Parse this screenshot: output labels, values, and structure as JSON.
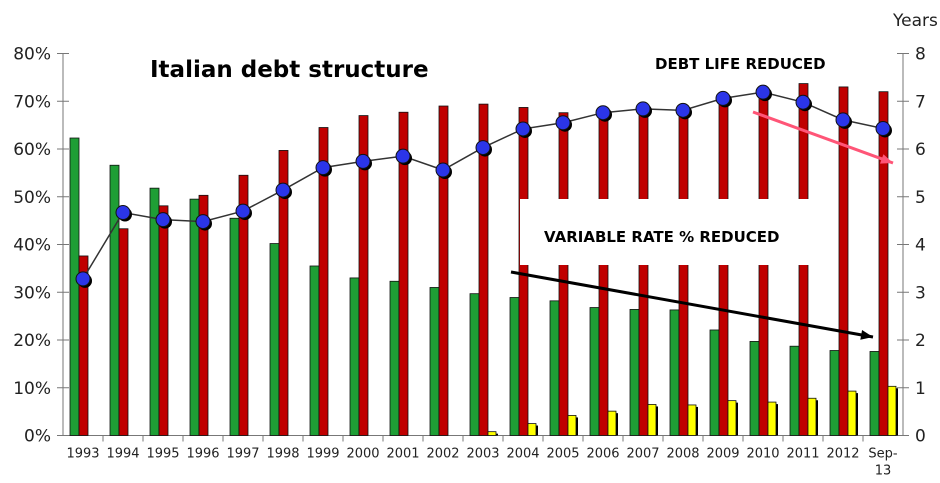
{
  "chart_data": {
    "type": "bar+line",
    "title": "Italian debt structure",
    "categories": [
      "1993",
      "1994",
      "1995",
      "1996",
      "1997",
      "1998",
      "1999",
      "2000",
      "2001",
      "2002",
      "2003",
      "2004",
      "2005",
      "2006",
      "2007",
      "2008",
      "2009",
      "2010",
      "2011",
      "2012",
      "Sep-13"
    ],
    "ylim_left": [
      0,
      80
    ],
    "yticks_left": [
      "0%",
      "10%",
      "20%",
      "30%",
      "40%",
      "50%",
      "60%",
      "70%",
      "80%"
    ],
    "ylim_right": [
      0,
      8
    ],
    "yticks_right": [
      "0",
      "1",
      "2",
      "3",
      "4",
      "5",
      "6",
      "7",
      "8"
    ],
    "ylabel_right": "Years",
    "grid": false,
    "bar_series": [
      {
        "color": "#1f9e35",
        "values": [
          62.3,
          56.6,
          51.8,
          49.5,
          45.5,
          40.2,
          35.5,
          33.0,
          32.3,
          31.0,
          29.7,
          28.9,
          28.2,
          26.8,
          26.4,
          26.3,
          22.1,
          19.7,
          18.7,
          17.8,
          17.6
        ]
      },
      {
        "color": "#c00000",
        "values": [
          37.6,
          43.3,
          48.1,
          50.3,
          54.5,
          59.7,
          64.5,
          67.0,
          67.7,
          69.0,
          69.4,
          68.7,
          67.6,
          68.0,
          68.5,
          68.0,
          71.0,
          72.0,
          73.7,
          73.0,
          72.0
        ]
      },
      {
        "color": "#ffff00",
        "values": [
          0,
          0,
          0,
          0,
          0,
          0,
          0,
          0,
          0,
          0,
          0.8,
          2.5,
          4.2,
          5.1,
          6.5,
          6.4,
          7.3,
          7.0,
          7.8,
          9.3,
          10.3
        ]
      }
    ],
    "line_series": {
      "axis": "right",
      "color": "#2b35e8",
      "values": [
        3.28,
        4.67,
        4.52,
        4.48,
        4.7,
        5.14,
        5.61,
        5.74,
        5.85,
        5.56,
        6.03,
        6.42,
        6.55,
        6.76,
        6.84,
        6.81,
        7.06,
        7.19,
        6.98,
        6.61,
        6.43
      ]
    },
    "annotations": [
      {
        "text": "DEBT LIFE REDUCED",
        "arrow_color": "#ff5577"
      },
      {
        "text": "VARIABLE RATE % REDUCED",
        "arrow_color": "#000000"
      }
    ]
  }
}
